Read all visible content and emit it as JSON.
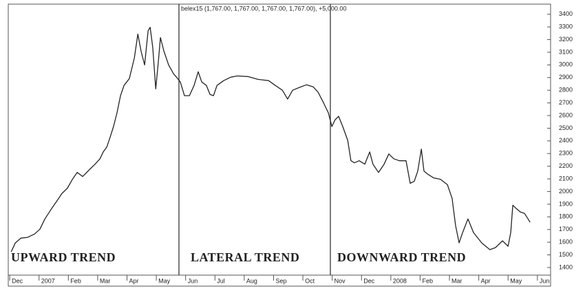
{
  "chart_data": {
    "type": "line",
    "title": "belex15 (1,767.00, 1,767.00, 1,767.00, 1,767.00), +5,000.00",
    "annotations": [
      "UPWARD TREND",
      "LATERAL TREND",
      "DOWNWARD TREND"
    ],
    "color": "#222222",
    "xlim": [
      -0.05,
      18.45
    ],
    "ylim": [
      1340,
      3480
    ],
    "xticks": [
      {
        "value": 0,
        "label": "Dec"
      },
      {
        "value": 1,
        "label": "2007"
      },
      {
        "value": 2,
        "label": "Feb"
      },
      {
        "value": 3,
        "label": "Mar"
      },
      {
        "value": 4,
        "label": "Apr"
      },
      {
        "value": 5,
        "label": "May"
      },
      {
        "value": 6,
        "label": "Jun"
      },
      {
        "value": 7,
        "label": "Jul"
      },
      {
        "value": 8,
        "label": "Aug"
      },
      {
        "value": 9,
        "label": "Sep"
      },
      {
        "value": 10,
        "label": "Oct"
      },
      {
        "value": 11,
        "label": "Nov"
      },
      {
        "value": 12,
        "label": "Dec"
      },
      {
        "value": 13,
        "label": "2008"
      },
      {
        "value": 14,
        "label": "Feb"
      },
      {
        "value": 15,
        "label": "Mar"
      },
      {
        "value": 16,
        "label": "Apr"
      },
      {
        "value": 17,
        "label": "May"
      },
      {
        "value": 18,
        "label": "Jun"
      }
    ],
    "yticks": [
      1400,
      1500,
      1600,
      1700,
      1800,
      1900,
      2000,
      2100,
      2200,
      2300,
      2400,
      2500,
      2600,
      2700,
      2800,
      2900,
      3000,
      3100,
      3200,
      3300,
      3400
    ],
    "x": [
      0.05,
      0.19,
      0.38,
      0.61,
      0.85,
      1.03,
      1.2,
      1.43,
      1.67,
      1.78,
      1.97,
      2.14,
      2.3,
      2.49,
      2.72,
      2.91,
      3.08,
      3.19,
      3.31,
      3.43,
      3.54,
      3.66,
      3.78,
      3.9,
      4.08,
      4.25,
      4.37,
      4.48,
      4.6,
      4.72,
      4.79,
      4.88,
      4.98,
      5.07,
      5.14,
      5.26,
      5.42,
      5.59,
      5.73,
      5.82,
      5.96,
      6.13,
      6.29,
      6.43,
      6.55,
      6.71,
      6.83,
      6.95,
      7.07,
      7.3,
      7.54,
      7.77,
      8.12,
      8.47,
      8.83,
      9.06,
      9.3,
      9.48,
      9.65,
      9.88,
      10.12,
      10.35,
      10.52,
      10.7,
      10.87,
      10.99,
      11.1,
      11.22,
      11.36,
      11.53,
      11.64,
      11.76,
      11.92,
      12.11,
      12.28,
      12.39,
      12.58,
      12.77,
      12.93,
      13.1,
      13.29,
      13.52,
      13.66,
      13.8,
      13.92,
      14.04,
      14.13,
      14.27,
      14.46,
      14.69,
      14.93,
      15.09,
      15.21,
      15.33,
      15.45,
      15.63,
      15.82,
      16.1,
      16.38,
      16.57,
      16.81,
      17.0,
      17.09,
      17.16,
      17.28,
      17.42,
      17.56,
      17.65,
      17.75
    ],
    "values": [
      1524,
      1594,
      1632,
      1638,
      1665,
      1703,
      1784,
      1865,
      1946,
      1984,
      2027,
      2097,
      2151,
      2119,
      2173,
      2216,
      2259,
      2313,
      2351,
      2432,
      2513,
      2622,
      2757,
      2838,
      2892,
      3054,
      3243,
      3108,
      3000,
      3270,
      3297,
      3135,
      2811,
      3027,
      3216,
      3108,
      3000,
      2930,
      2892,
      2865,
      2757,
      2757,
      2838,
      2946,
      2865,
      2838,
      2767,
      2757,
      2838,
      2876,
      2903,
      2913,
      2908,
      2886,
      2876,
      2838,
      2800,
      2730,
      2800,
      2822,
      2843,
      2827,
      2784,
      2703,
      2622,
      2513,
      2567,
      2594,
      2513,
      2405,
      2243,
      2227,
      2243,
      2216,
      2313,
      2216,
      2151,
      2216,
      2297,
      2259,
      2243,
      2243,
      2065,
      2081,
      2162,
      2335,
      2162,
      2135,
      2108,
      2097,
      2054,
      1946,
      1730,
      1595,
      1676,
      1784,
      1676,
      1595,
      1541,
      1557,
      1611,
      1568,
      1676,
      1892,
      1865,
      1838,
      1827,
      1795,
      1757
    ]
  }
}
